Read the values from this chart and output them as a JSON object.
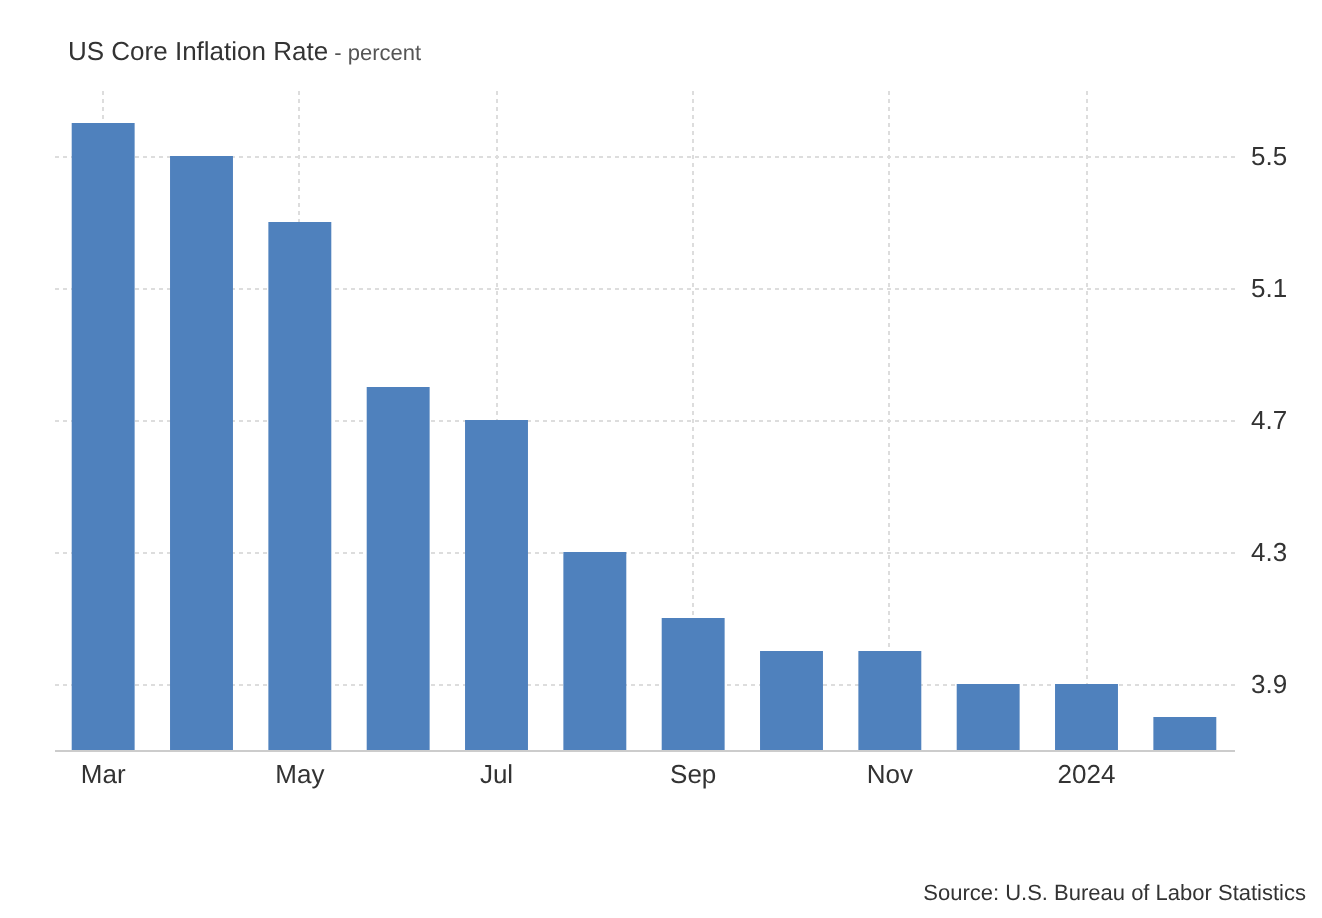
{
  "chart_data": {
    "type": "bar",
    "title": "US Core Inflation Rate",
    "subtitle": "- percent",
    "categories": [
      "Mar",
      null,
      "May",
      null,
      "Jul",
      null,
      "Sep",
      null,
      "Nov",
      null,
      "2024",
      null
    ],
    "values": [
      5.6,
      5.5,
      5.3,
      4.8,
      4.7,
      4.3,
      4.1,
      4.0,
      4.0,
      3.9,
      3.9,
      3.8
    ],
    "color": "#4f81bd",
    "ylim": [
      3.7,
      5.7
    ],
    "yticks": [
      3.9,
      4.3,
      4.7,
      5.1,
      5.5
    ],
    "grid": true,
    "annotations": [
      "Source: U.S. Bureau of Labor Statistics"
    ]
  }
}
